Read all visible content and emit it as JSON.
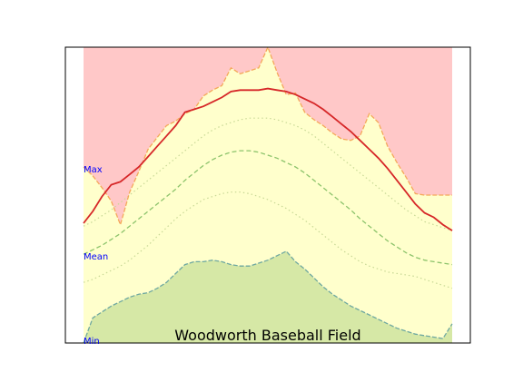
{
  "chart_data": {
    "type": "area",
    "title": "Woodworth Baseball Field",
    "xlabel": "",
    "ylabel": "",
    "x": [
      0,
      2,
      4,
      6,
      8,
      10,
      12,
      14,
      16,
      18,
      20,
      22,
      24,
      26,
      28,
      30,
      32,
      34,
      36,
      38,
      40,
      42,
      44,
      46,
      48,
      50,
      52,
      54,
      56,
      58,
      60,
      62,
      64,
      66,
      68,
      70,
      72,
      74,
      76,
      78,
      80
    ],
    "ylim": [
      0,
      100
    ],
    "xlim": [
      0,
      80
    ],
    "axis_labels": [
      "Max",
      "Mean",
      "Min"
    ],
    "series": [
      {
        "values": [
          59.5,
          56.5,
          52.5,
          48.0,
          40.0,
          51.0,
          58.0,
          65.5,
          69.5,
          73.5,
          75.0,
          77.5,
          79.0,
          83.5,
          85.5,
          87.0,
          93.0,
          91.0,
          92.0,
          93.0,
          100.0,
          91.5,
          84.0,
          84.5,
          78.0,
          75.5,
          73.5,
          71.0,
          69.0,
          68.5,
          70.0,
          77.5,
          74.5,
          66.5,
          61.0,
          56.0,
          50.5,
          50.0,
          50.0,
          50.0,
          50.0
        ]
      },
      {
        "values": [
          40.5,
          44.5,
          49.5,
          53.5,
          54.5,
          57.0,
          59.5,
          63.0,
          66.5,
          70.0,
          73.5,
          78.0,
          79.0,
          80.0,
          81.5,
          83.0,
          85.0,
          85.5,
          85.5,
          85.5,
          86.0,
          85.5,
          85.0,
          84.0,
          82.5,
          81.0,
          79.0,
          76.5,
          74.0,
          71.5,
          68.5,
          65.5,
          62.5,
          59.0,
          55.0,
          51.0,
          47.0,
          44.0,
          42.5,
          40.0,
          38.0
        ]
      },
      {
        "values": [
          39.5,
          41.0,
          43.0,
          45.0,
          47.5,
          50.0,
          52.5,
          55.0,
          57.5,
          60.0,
          62.5,
          65.0,
          67.5,
          70.0,
          72.0,
          73.5,
          74.5,
          75.5,
          76.0,
          76.0,
          76.0,
          75.5,
          74.5,
          73.5,
          72.0,
          70.0,
          67.5,
          65.0,
          62.5,
          60.0,
          57.5,
          55.0,
          52.5,
          50.0,
          47.5,
          45.0,
          43.0,
          41.0,
          40.0,
          39.0,
          38.0
        ]
      },
      {
        "values": [
          30.0,
          31.5,
          33.0,
          35.0,
          37.0,
          39.5,
          42.0,
          44.5,
          47.0,
          49.5,
          52.0,
          55.0,
          57.5,
          60.0,
          62.0,
          63.5,
          64.5,
          65.0,
          65.0,
          64.5,
          63.5,
          62.5,
          61.0,
          59.5,
          57.5,
          55.0,
          52.5,
          50.0,
          47.5,
          45.0,
          42.0,
          39.5,
          37.0,
          34.5,
          32.5,
          30.5,
          29.0,
          28.0,
          27.5,
          27.0,
          26.5
        ]
      },
      {
        "values": [
          20.5,
          21.5,
          23.0,
          24.5,
          26.0,
          28.0,
          30.5,
          33.0,
          36.0,
          39.0,
          42.0,
          44.5,
          46.5,
          48.5,
          49.5,
          50.5,
          51.0,
          51.0,
          50.5,
          49.5,
          48.5,
          47.0,
          45.5,
          43.5,
          41.5,
          39.0,
          36.5,
          34.0,
          31.5,
          29.5,
          27.5,
          26.0,
          25.0,
          24.0,
          23.5,
          23.0,
          22.5,
          21.5,
          20.5,
          19.5,
          18.5
        ]
      },
      {
        "values": [
          0.0,
          8.5,
          10.5,
          12.5,
          14.0,
          15.5,
          16.5,
          17.0,
          18.5,
          20.5,
          23.5,
          26.5,
          27.5,
          27.5,
          28.0,
          27.5,
          26.5,
          26.0,
          26.0,
          27.0,
          28.0,
          29.5,
          31.0,
          27.5,
          25.0,
          22.0,
          19.0,
          16.5,
          14.5,
          12.5,
          11.0,
          9.5,
          8.0,
          6.5,
          5.0,
          4.0,
          3.0,
          2.5,
          2.0,
          1.5,
          6.5
        ]
      }
    ],
    "colors": {
      "above_max": "#ffc8c8",
      "band": "#ffffcc",
      "below_min": "#d6e8a6",
      "record_high_line": "#f4a85a",
      "mean_line": "#d62728",
      "normal_dashed": "#8cc36b",
      "normal_dotted": "#c8d896",
      "record_low_line": "#6fa8a0",
      "axis_label_color": "#0000ff"
    },
    "grid": false
  }
}
